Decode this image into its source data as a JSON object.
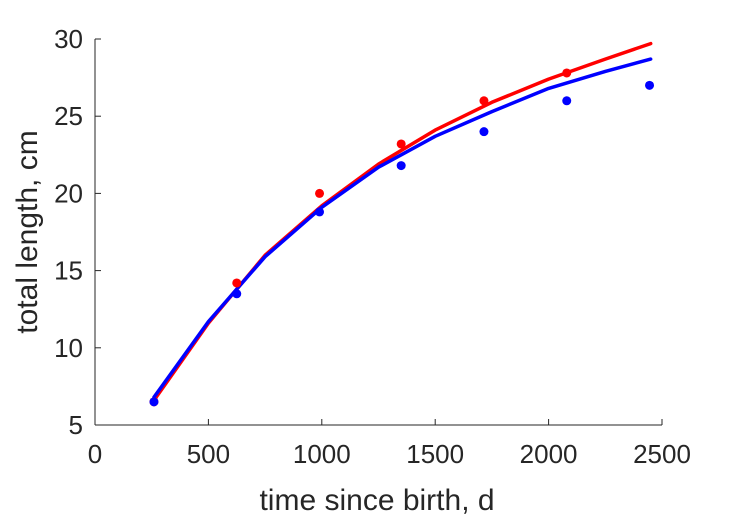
{
  "chart_data": {
    "type": "scatter",
    "xlabel": "time since birth, d",
    "ylabel": "total length, cm",
    "xlim": [
      0,
      2500
    ],
    "ylim": [
      5,
      30
    ],
    "x_ticks": [
      "0",
      "500",
      "1000",
      "1500",
      "2000",
      "2500"
    ],
    "y_ticks": [
      "5",
      "10",
      "15",
      "20",
      "25",
      "30"
    ],
    "grid": false,
    "legend": "none",
    "series": [
      {
        "color": "#ff0000",
        "points": [
          {
            "x": 260,
            "y": 6.5
          },
          {
            "x": 625,
            "y": 14.2
          },
          {
            "x": 990,
            "y": 20.0
          },
          {
            "x": 1350,
            "y": 23.2
          },
          {
            "x": 1715,
            "y": 26.0
          },
          {
            "x": 2080,
            "y": 27.8
          }
        ],
        "fit_curve": [
          {
            "x": 260,
            "y": 6.6
          },
          {
            "x": 500,
            "y": 11.6
          },
          {
            "x": 750,
            "y": 16.0
          },
          {
            "x": 1000,
            "y": 19.2
          },
          {
            "x": 1250,
            "y": 21.9
          },
          {
            "x": 1500,
            "y": 24.1
          },
          {
            "x": 1750,
            "y": 25.9
          },
          {
            "x": 2000,
            "y": 27.4
          },
          {
            "x": 2250,
            "y": 28.7
          },
          {
            "x": 2450,
            "y": 29.7
          }
        ]
      },
      {
        "color": "#0000ff",
        "points": [
          {
            "x": 260,
            "y": 6.5
          },
          {
            "x": 625,
            "y": 13.5
          },
          {
            "x": 990,
            "y": 18.8
          },
          {
            "x": 1350,
            "y": 21.8
          },
          {
            "x": 1715,
            "y": 24.0
          },
          {
            "x": 2080,
            "y": 26.0
          },
          {
            "x": 2445,
            "y": 27.0
          }
        ],
        "fit_curve": [
          {
            "x": 260,
            "y": 6.8
          },
          {
            "x": 500,
            "y": 11.7
          },
          {
            "x": 750,
            "y": 15.9
          },
          {
            "x": 1000,
            "y": 19.1
          },
          {
            "x": 1250,
            "y": 21.7
          },
          {
            "x": 1500,
            "y": 23.7
          },
          {
            "x": 1750,
            "y": 25.3
          },
          {
            "x": 2000,
            "y": 26.8
          },
          {
            "x": 2250,
            "y": 27.9
          },
          {
            "x": 2450,
            "y": 28.7
          }
        ]
      }
    ]
  }
}
